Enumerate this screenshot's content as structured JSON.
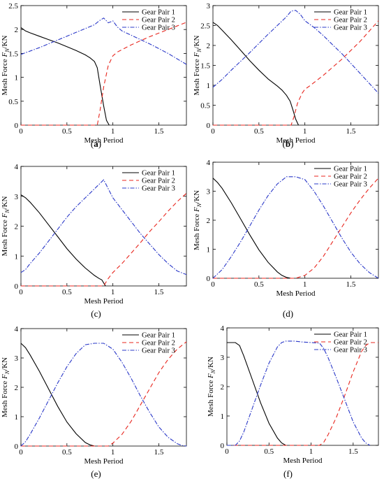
{
  "chart_data": [
    {
      "panel_label": "a",
      "type": "line",
      "xlabel": "Mesh Period",
      "ylabel": "Mesh Force F_N/KN",
      "xlim": [
        0,
        1.8
      ],
      "ylim": [
        0,
        2.5
      ],
      "xticks": [
        "0",
        "0.5",
        "1",
        "1.5"
      ],
      "yticks": [
        "0",
        "0.5",
        "1",
        "1.5",
        "2",
        "2.5"
      ],
      "legend": "top-right",
      "series": [
        {
          "name": "Gear Pair 1",
          "color": "#000000",
          "dash": "solid",
          "x": [
            0,
            0.05,
            0.1,
            0.2,
            0.3,
            0.4,
            0.5,
            0.6,
            0.7,
            0.75,
            0.8,
            0.83,
            0.86,
            0.9,
            0.93,
            0.96
          ],
          "y": [
            2.04,
            1.97,
            1.93,
            1.86,
            1.79,
            1.72,
            1.64,
            1.56,
            1.47,
            1.41,
            1.33,
            1.2,
            0.85,
            0.4,
            0.1,
            0
          ]
        },
        {
          "name": "Gear Pair 2",
          "color": "#e8261e",
          "dash": "6,4",
          "x": [
            0,
            0.83,
            0.86,
            0.9,
            0.95,
            1.0,
            1.05,
            1.2,
            1.4,
            1.6,
            1.8
          ],
          "y": [
            0,
            0,
            0.3,
            0.8,
            1.25,
            1.45,
            1.53,
            1.68,
            1.85,
            2.0,
            2.15
          ]
        },
        {
          "name": "Gear Pair 3",
          "color": "#2a38c8",
          "dash": "6,2,1.5,2",
          "x": [
            0,
            0.2,
            0.4,
            0.6,
            0.8,
            0.85,
            0.9,
            0.95,
            1.0,
            1.05,
            1.1,
            1.2,
            1.4,
            1.6,
            1.8
          ],
          "y": [
            1.48,
            1.62,
            1.78,
            1.94,
            2.1,
            2.18,
            2.24,
            2.14,
            2.18,
            2.05,
            1.97,
            1.88,
            1.7,
            1.5,
            1.27
          ]
        }
      ]
    },
    {
      "panel_label": "b",
      "type": "line",
      "xlabel": "Mesh Period",
      "ylabel": "Mesh Force F_N/KN",
      "xlim": [
        0,
        1.8
      ],
      "ylim": [
        0,
        3
      ],
      "xticks": [
        "0",
        "0.5",
        "1",
        "1.5"
      ],
      "yticks": [
        "0",
        "0.5",
        "1",
        "1.5",
        "2",
        "2.5",
        "3"
      ],
      "legend": "top-right",
      "series": [
        {
          "name": "Gear Pair 1",
          "color": "#000000",
          "dash": "solid",
          "x": [
            0,
            0.05,
            0.1,
            0.2,
            0.3,
            0.4,
            0.5,
            0.6,
            0.7,
            0.75,
            0.8,
            0.84,
            0.87,
            0.9,
            0.93
          ],
          "y": [
            2.58,
            2.5,
            2.38,
            2.14,
            1.88,
            1.62,
            1.38,
            1.16,
            0.98,
            0.88,
            0.75,
            0.6,
            0.38,
            0.15,
            0
          ]
        },
        {
          "name": "Gear Pair 2",
          "color": "#e8261e",
          "dash": "6,4",
          "x": [
            0,
            0.85,
            0.88,
            0.92,
            0.97,
            1.0,
            1.05,
            1.2,
            1.4,
            1.6,
            1.8
          ],
          "y": [
            0,
            0,
            0.2,
            0.55,
            0.8,
            0.9,
            0.98,
            1.25,
            1.65,
            2.1,
            2.62
          ]
        },
        {
          "name": "Gear Pair 3",
          "color": "#2a38c8",
          "dash": "6,2,1.5,2",
          "x": [
            0,
            0.1,
            0.2,
            0.3,
            0.4,
            0.5,
            0.6,
            0.7,
            0.8,
            0.85,
            0.9,
            0.95,
            1.0,
            1.1,
            1.2,
            1.3,
            1.4,
            1.5,
            1.6,
            1.7,
            1.8
          ],
          "y": [
            0.95,
            1.15,
            1.38,
            1.6,
            1.82,
            2.05,
            2.28,
            2.5,
            2.72,
            2.86,
            2.88,
            2.78,
            2.62,
            2.45,
            2.25,
            2.02,
            1.8,
            1.55,
            1.3,
            1.05,
            0.8
          ]
        }
      ]
    },
    {
      "panel_label": "c",
      "type": "line",
      "xlabel": "Mesh Period",
      "ylabel": "Mesh Force F_N/KN",
      "xlim": [
        0,
        1.8
      ],
      "ylim": [
        0,
        4
      ],
      "xticks": [
        "0",
        "0.5",
        "1",
        "1.5"
      ],
      "yticks": [
        "0",
        "1",
        "2",
        "3",
        "4"
      ],
      "legend": "top-right",
      "series": [
        {
          "name": "Gear Pair 1",
          "color": "#000000",
          "dash": "solid",
          "x": [
            0,
            0.05,
            0.1,
            0.2,
            0.3,
            0.4,
            0.5,
            0.6,
            0.7,
            0.8,
            0.85,
            0.88,
            0.9,
            0.92
          ],
          "y": [
            3.05,
            2.95,
            2.8,
            2.45,
            2.05,
            1.65,
            1.25,
            0.9,
            0.6,
            0.35,
            0.25,
            0.2,
            0.1,
            0
          ]
        },
        {
          "name": "Gear Pair 2",
          "color": "#e8261e",
          "dash": "6,4",
          "x": [
            0,
            0.9,
            0.95,
            1.0,
            1.1,
            1.2,
            1.3,
            1.4,
            1.5,
            1.6,
            1.7,
            1.8
          ],
          "y": [
            0,
            0,
            0.25,
            0.45,
            0.75,
            1.1,
            1.45,
            1.82,
            2.15,
            2.5,
            2.82,
            3.1
          ]
        },
        {
          "name": "Gear Pair 3",
          "color": "#2a38c8",
          "dash": "6,2,1.5,2",
          "x": [
            0,
            0.05,
            0.1,
            0.2,
            0.3,
            0.4,
            0.5,
            0.6,
            0.7,
            0.8,
            0.9,
            0.95,
            1.0,
            1.1,
            1.2,
            1.3,
            1.4,
            1.5,
            1.6,
            1.7,
            1.8
          ],
          "y": [
            0.45,
            0.55,
            0.75,
            1.1,
            1.5,
            1.9,
            2.3,
            2.65,
            2.95,
            3.25,
            3.55,
            3.25,
            2.95,
            2.55,
            2.15,
            1.75,
            1.4,
            1.05,
            0.75,
            0.5,
            0.38
          ]
        }
      ]
    },
    {
      "panel_label": "d",
      "type": "line",
      "xlabel": "Mesh Period",
      "ylabel": "Mesh Force F_N/KN",
      "xlim": [
        0,
        1.8
      ],
      "ylim": [
        0,
        4
      ],
      "xticks": [
        "0",
        "0.5",
        "1",
        "1.5"
      ],
      "yticks": [
        "0",
        "1",
        "2",
        "3",
        "4"
      ],
      "legend": "top-right",
      "series": [
        {
          "name": "Gear Pair 1",
          "color": "#000000",
          "dash": "solid",
          "x": [
            0,
            0.05,
            0.1,
            0.2,
            0.3,
            0.4,
            0.5,
            0.6,
            0.7,
            0.75,
            0.8,
            0.85
          ],
          "y": [
            3.45,
            3.3,
            3.1,
            2.6,
            2.05,
            1.5,
            0.98,
            0.55,
            0.22,
            0.1,
            0.03,
            0
          ]
        },
        {
          "name": "Gear Pair 2",
          "color": "#e8261e",
          "dash": "6,4",
          "x": [
            0,
            0.9,
            1.0,
            1.1,
            1.2,
            1.3,
            1.4,
            1.5,
            1.6,
            1.7,
            1.8
          ],
          "y": [
            0,
            0,
            0.1,
            0.35,
            0.75,
            1.25,
            1.75,
            2.25,
            2.7,
            3.1,
            3.45
          ]
        },
        {
          "name": "Gear Pair 3",
          "color": "#2a38c8",
          "dash": "6,2,1.5,2",
          "x": [
            0,
            0.1,
            0.2,
            0.3,
            0.4,
            0.5,
            0.6,
            0.7,
            0.8,
            0.9,
            1.0,
            1.1,
            1.2,
            1.3,
            1.4,
            1.5,
            1.6,
            1.7,
            1.8
          ],
          "y": [
            0,
            0.3,
            0.75,
            1.25,
            1.8,
            2.35,
            2.85,
            3.25,
            3.5,
            3.5,
            3.4,
            3.0,
            2.5,
            1.95,
            1.4,
            0.9,
            0.5,
            0.2,
            0
          ]
        }
      ]
    },
    {
      "panel_label": "e",
      "type": "line",
      "xlabel": "Mesh Period",
      "ylabel": "Mesh Force F_N/KN",
      "xlim": [
        0,
        1.8
      ],
      "ylim": [
        0,
        4
      ],
      "xticks": [
        "0",
        "0.5",
        "1",
        "1.5"
      ],
      "yticks": [
        "0",
        "1",
        "2",
        "3",
        "4"
      ],
      "legend": "top-right",
      "series": [
        {
          "name": "Gear Pair 1",
          "color": "#000000",
          "dash": "solid",
          "x": [
            0,
            0.05,
            0.1,
            0.2,
            0.3,
            0.4,
            0.5,
            0.6,
            0.7,
            0.75,
            0.8
          ],
          "y": [
            3.5,
            3.35,
            3.1,
            2.55,
            1.95,
            1.35,
            0.82,
            0.42,
            0.12,
            0.04,
            0
          ]
        },
        {
          "name": "Gear Pair 2",
          "color": "#e8261e",
          "dash": "6,4",
          "x": [
            0,
            0.95,
            1.0,
            1.1,
            1.2,
            1.3,
            1.4,
            1.5,
            1.6,
            1.7,
            1.8
          ],
          "y": [
            0,
            0,
            0.1,
            0.4,
            0.85,
            1.4,
            1.95,
            2.5,
            2.95,
            3.3,
            3.55
          ]
        },
        {
          "name": "Gear Pair 3",
          "color": "#2a38c8",
          "dash": "6,2,1.5,2",
          "x": [
            0,
            0.05,
            0.1,
            0.2,
            0.3,
            0.4,
            0.5,
            0.6,
            0.7,
            0.8,
            0.9,
            1.0,
            1.1,
            1.2,
            1.3,
            1.4,
            1.5,
            1.6,
            1.7,
            1.75,
            1.8
          ],
          "y": [
            0,
            0.15,
            0.4,
            0.95,
            1.55,
            2.15,
            2.7,
            3.15,
            3.45,
            3.5,
            3.5,
            3.3,
            2.85,
            2.3,
            1.7,
            1.15,
            0.65,
            0.3,
            0.08,
            0.02,
            0
          ]
        }
      ]
    },
    {
      "panel_label": "f",
      "type": "line",
      "xlabel": "Mesh Period",
      "ylabel": "Mesh Force F_N/KN",
      "xlim": [
        0,
        1.8
      ],
      "ylim": [
        0,
        4
      ],
      "xticks": [
        "0",
        "0.5",
        "1",
        "1.5"
      ],
      "yticks": [
        "0",
        "1",
        "2",
        "3",
        "4"
      ],
      "legend": "top-right",
      "series": [
        {
          "name": "Gear Pair 1",
          "color": "#000000",
          "dash": "solid",
          "x": [
            0,
            0.1,
            0.15,
            0.2,
            0.3,
            0.4,
            0.5,
            0.6,
            0.65,
            0.7
          ],
          "y": [
            3.5,
            3.5,
            3.4,
            3.05,
            2.25,
            1.45,
            0.75,
            0.25,
            0.08,
            0
          ]
        },
        {
          "name": "Gear Pair 2",
          "color": "#e8261e",
          "dash": "6,4",
          "x": [
            0,
            1.1,
            1.15,
            1.2,
            1.3,
            1.4,
            1.5,
            1.6,
            1.65,
            1.7,
            1.8
          ],
          "y": [
            0,
            0,
            0.1,
            0.35,
            0.95,
            1.7,
            2.5,
            3.2,
            3.4,
            3.5,
            3.5
          ]
        },
        {
          "name": "Gear Pair 3",
          "color": "#2a38c8",
          "dash": "6,2,1.5,2",
          "x": [
            0,
            0.1,
            0.15,
            0.2,
            0.3,
            0.4,
            0.5,
            0.6,
            0.65,
            0.7,
            0.8,
            0.9,
            1.0,
            1.1,
            1.15,
            1.2,
            1.3,
            1.4,
            1.5,
            1.6,
            1.65,
            1.7
          ],
          "y": [
            0,
            0,
            0.15,
            0.45,
            1.25,
            2.05,
            2.8,
            3.35,
            3.5,
            3.55,
            3.55,
            3.52,
            3.5,
            3.48,
            3.3,
            3.0,
            2.3,
            1.55,
            0.8,
            0.25,
            0.08,
            0
          ]
        }
      ]
    }
  ],
  "captions": [
    {
      "paren_open": "(",
      "letter": "a",
      "paren_close": ")"
    },
    {
      "paren_open": "(",
      "letter": "b",
      "paren_close": ")"
    },
    {
      "paren_open": "(",
      "letter": "c",
      "paren_close": ")"
    },
    {
      "paren_open": "(",
      "letter": "d",
      "paren_close": ")"
    },
    {
      "paren_open": "(",
      "letter": "e",
      "paren_close": ")"
    },
    {
      "paren_open": "(",
      "letter": "f",
      "paren_close": ")"
    }
  ]
}
